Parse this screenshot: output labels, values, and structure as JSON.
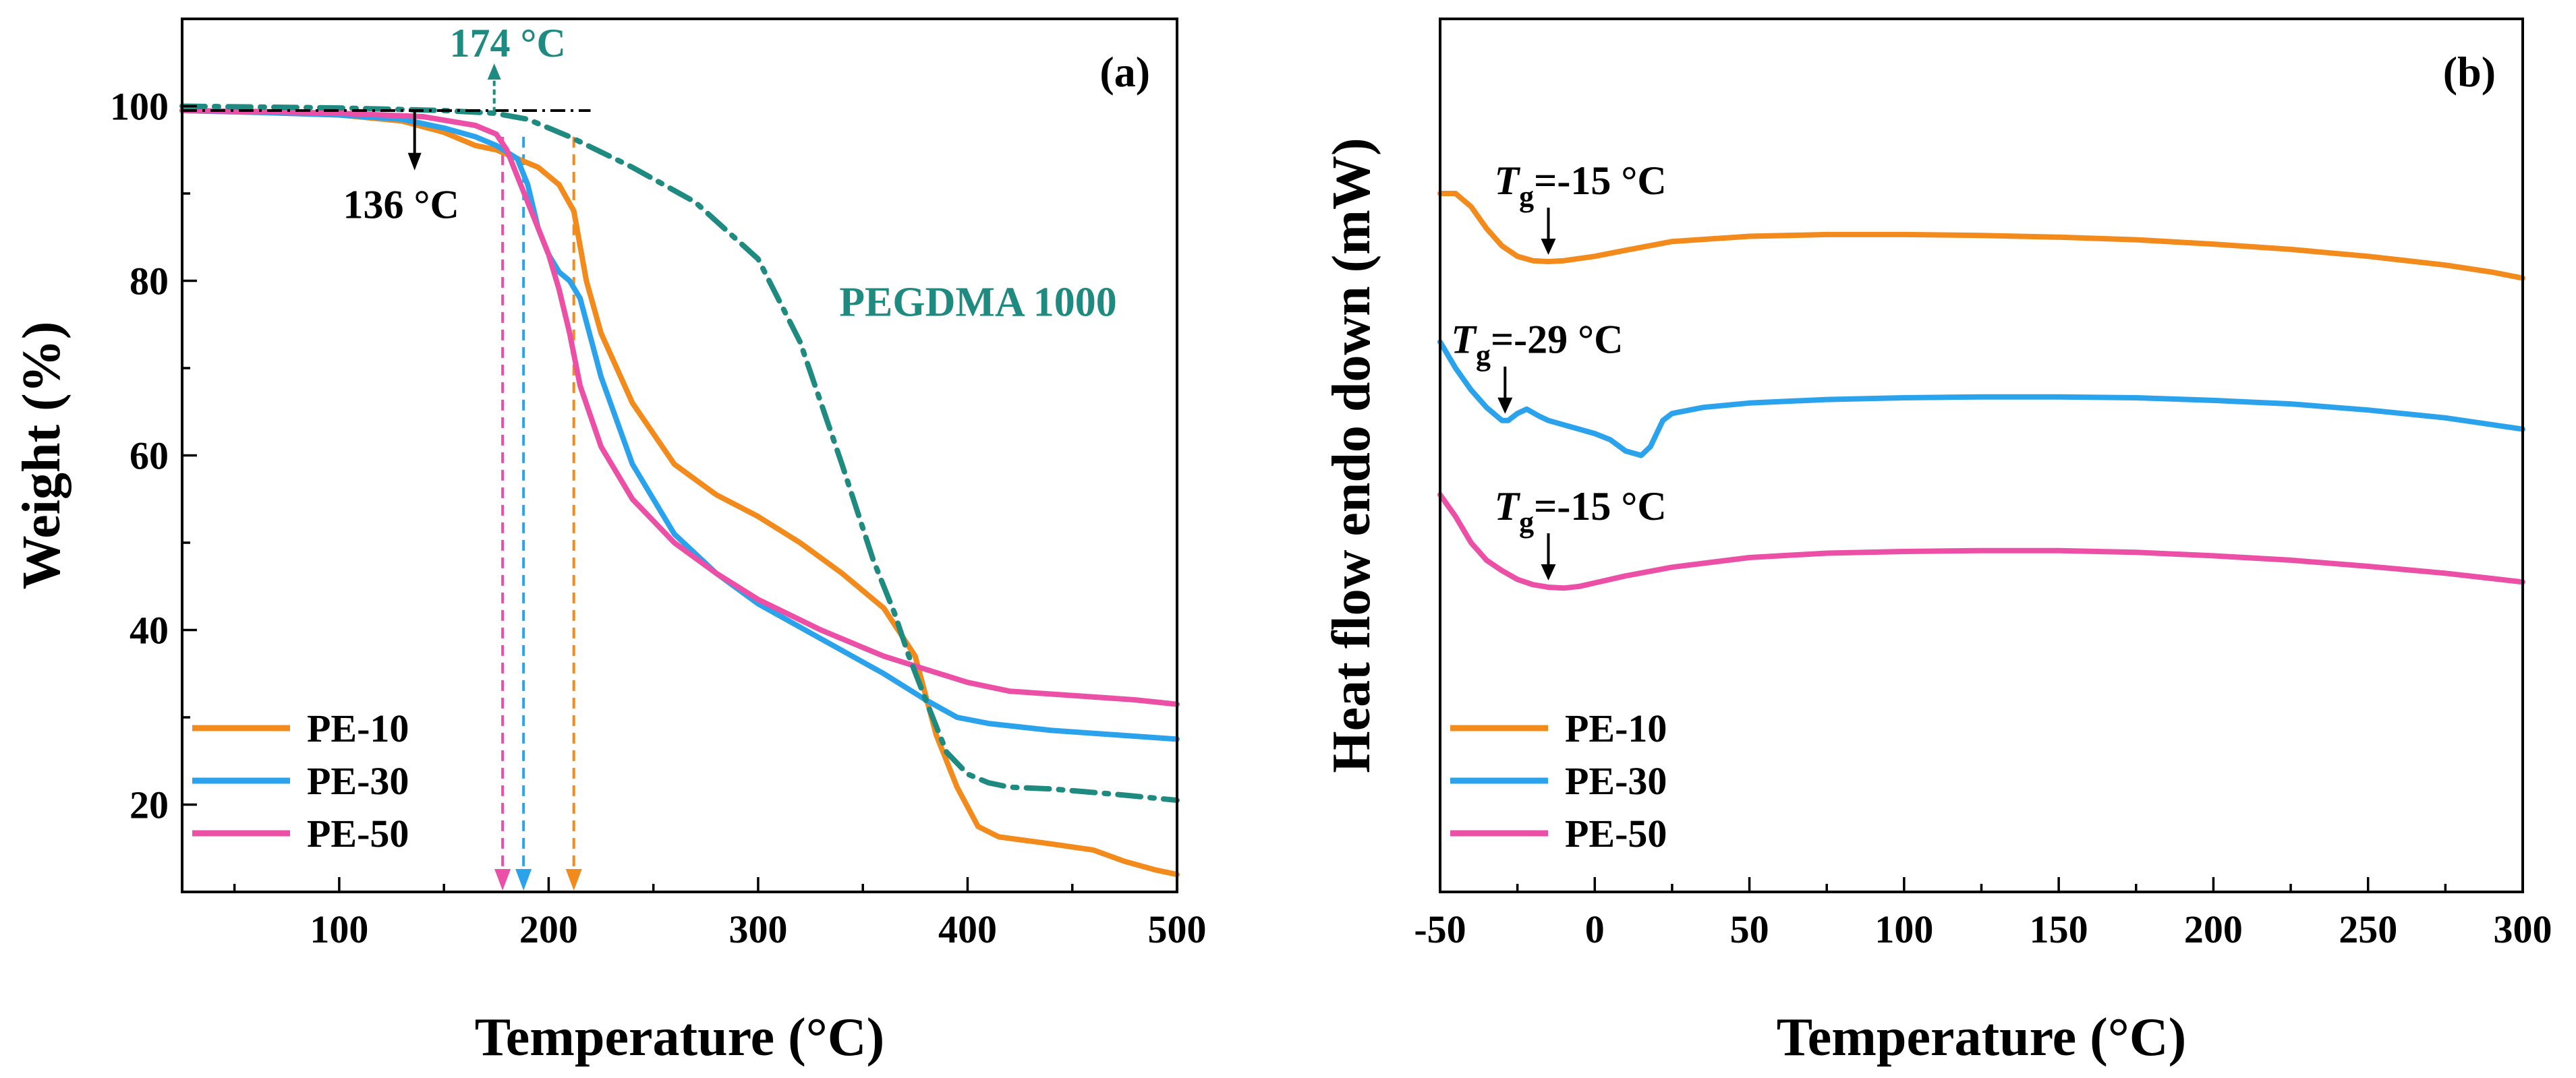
{
  "colors": {
    "pe10": "#f28a1c",
    "pe30": "#2ba3ec",
    "pe50": "#ec4fa6",
    "pegdma": "#1f8a80",
    "black": "#000000"
  },
  "chart_data": [
    {
      "type": "line",
      "panel_label": "(a)",
      "xlabel": "Temperature (°C)",
      "ylabel": "Weight (%)",
      "xlim": [
        25,
        500
      ],
      "ylim": [
        10,
        110
      ],
      "xticks": [
        100,
        200,
        300,
        400,
        500
      ],
      "yticks": [
        20,
        40,
        60,
        80,
        100
      ],
      "legend_position": "bottom-left",
      "series": [
        {
          "name": "PE-10",
          "color_key": "pe10",
          "x": [
            25,
            60,
            100,
            130,
            150,
            165,
            175,
            185,
            195,
            205,
            212,
            218,
            225,
            240,
            260,
            280,
            300,
            320,
            340,
            360,
            375,
            385,
            395,
            405,
            415,
            440,
            460,
            475,
            490,
            500
          ],
          "y": [
            99.5,
            99.3,
            99.0,
            98.3,
            97.0,
            95.5,
            95.0,
            94.0,
            93.0,
            91.0,
            88.0,
            80.0,
            74.0,
            66.0,
            59.0,
            55.5,
            53.0,
            50.0,
            46.5,
            42.5,
            37.0,
            28.0,
            22.0,
            17.5,
            16.3,
            15.5,
            14.8,
            13.5,
            12.5,
            12.0
          ]
        },
        {
          "name": "PE-30",
          "color_key": "pe30",
          "x": [
            25,
            60,
            100,
            130,
            150,
            165,
            175,
            185,
            190,
            195,
            200,
            205,
            210,
            215,
            225,
            240,
            260,
            280,
            300,
            330,
            360,
            380,
            395,
            410,
            440,
            470,
            500
          ],
          "y": [
            99.5,
            99.3,
            99.0,
            98.5,
            97.5,
            96.5,
            95.5,
            94.0,
            91.0,
            86.0,
            83.0,
            81.0,
            80.0,
            78.0,
            69.0,
            59.0,
            51.0,
            46.5,
            43.0,
            39.0,
            35.0,
            32.0,
            30.0,
            29.3,
            28.5,
            28.0,
            27.5
          ]
        },
        {
          "name": "PE-50",
          "color_key": "pe50",
          "x": [
            25,
            60,
            100,
            140,
            165,
            175,
            180,
            185,
            190,
            195,
            200,
            205,
            210,
            215,
            225,
            240,
            260,
            280,
            300,
            330,
            360,
            380,
            400,
            420,
            450,
            480,
            500
          ],
          "y": [
            99.5,
            99.4,
            99.2,
            98.8,
            97.8,
            96.8,
            95.0,
            92.0,
            89.0,
            86.0,
            83.0,
            79.0,
            74.0,
            68.0,
            61.0,
            55.0,
            50.0,
            46.5,
            43.5,
            40.0,
            37.0,
            35.5,
            34.0,
            33.0,
            32.5,
            32.0,
            31.5
          ]
        },
        {
          "name": "PEGDMA 1000",
          "color_key": "pegdma",
          "dashed": true,
          "x": [
            25,
            100,
            150,
            174,
            190,
            210,
            240,
            270,
            300,
            320,
            340,
            355,
            365,
            372,
            380,
            390,
            400,
            410,
            420,
            440,
            470,
            500
          ],
          "y": [
            100.0,
            99.8,
            99.5,
            99.2,
            98.5,
            96.5,
            93.0,
            89.0,
            82.5,
            73.0,
            59.0,
            48.0,
            42.0,
            37.0,
            32.0,
            26.0,
            23.5,
            22.5,
            22.0,
            21.8,
            21.2,
            20.5
          ]
        }
      ],
      "legend": [
        "PE-10",
        "PE-30",
        "PE-50"
      ],
      "series_label": "PEGDMA 1000",
      "annotations": {
        "onset_pegdma": "174 °C",
        "onset_pe": "136 °C",
        "onset_pegdma_x": 174,
        "onset_pe_x": 136,
        "reference_line_y": 99.5,
        "drop_lines": [
          {
            "x": 178,
            "color_key": "pe50"
          },
          {
            "x": 188,
            "color_key": "pe30"
          },
          {
            "x": 212,
            "color_key": "pe10"
          }
        ]
      }
    },
    {
      "type": "line",
      "panel_label": "(b)",
      "xlabel": "Temperature (°C)",
      "ylabel": "Heat flow endo down (mW)",
      "xlim": [
        -50,
        300
      ],
      "ylim": [
        0,
        100
      ],
      "xticks": [
        -50,
        0,
        50,
        100,
        150,
        200,
        250,
        300
      ],
      "yticks": [],
      "legend_position": "bottom-left",
      "series": [
        {
          "name": "PE-10",
          "color_key": "pe10",
          "x": [
            -50,
            -45,
            -40,
            -35,
            -30,
            -25,
            -20,
            -15,
            -10,
            0,
            10,
            25,
            50,
            75,
            100,
            125,
            150,
            175,
            200,
            225,
            250,
            275,
            290,
            300
          ],
          "y": [
            80.0,
            80.0,
            78.5,
            76.0,
            74.0,
            72.8,
            72.3,
            72.2,
            72.3,
            72.8,
            73.5,
            74.5,
            75.1,
            75.3,
            75.3,
            75.2,
            75.0,
            74.7,
            74.2,
            73.6,
            72.8,
            71.8,
            71.0,
            70.3
          ]
        },
        {
          "name": "PE-30",
          "color_key": "pe30",
          "x": [
            -50,
            -45,
            -40,
            -35,
            -30,
            -28,
            -25,
            -22,
            -18,
            -15,
            -10,
            -5,
            0,
            5,
            10,
            15,
            18,
            22,
            25,
            35,
            50,
            75,
            100,
            125,
            150,
            175,
            200,
            225,
            250,
            275,
            300
          ],
          "y": [
            63.0,
            60.0,
            57.5,
            55.5,
            54.0,
            54.0,
            54.8,
            55.3,
            54.5,
            54.0,
            53.5,
            53.0,
            52.5,
            51.8,
            50.5,
            50.0,
            51.0,
            54.0,
            54.8,
            55.5,
            56.0,
            56.4,
            56.6,
            56.7,
            56.7,
            56.6,
            56.3,
            55.9,
            55.2,
            54.3,
            53.0
          ]
        },
        {
          "name": "PE-50",
          "color_key": "pe50",
          "x": [
            -50,
            -45,
            -40,
            -35,
            -30,
            -25,
            -20,
            -15,
            -10,
            -5,
            0,
            10,
            25,
            50,
            75,
            100,
            125,
            150,
            175,
            200,
            225,
            250,
            275,
            300
          ],
          "y": [
            45.5,
            43.0,
            40.0,
            38.0,
            36.8,
            35.8,
            35.2,
            34.9,
            34.8,
            35.0,
            35.4,
            36.2,
            37.2,
            38.3,
            38.8,
            39.0,
            39.1,
            39.1,
            38.9,
            38.5,
            38.0,
            37.3,
            36.5,
            35.5
          ]
        }
      ],
      "legend": [
        "PE-10",
        "PE-30",
        "PE-50"
      ],
      "annotations": [
        {
          "label": "Tg=-15 °C",
          "symbol": "T",
          "sub": "g",
          "value": "=-15 °C",
          "x": -15,
          "series": "PE-10"
        },
        {
          "label": "Tg=-29 °C",
          "symbol": "T",
          "sub": "g",
          "value": "=-29 °C",
          "x": -29,
          "series": "PE-30"
        },
        {
          "label": "Tg=-15 °C",
          "symbol": "T",
          "sub": "g",
          "value": "=-15 °C",
          "x": -15,
          "series": "PE-50"
        }
      ]
    }
  ]
}
